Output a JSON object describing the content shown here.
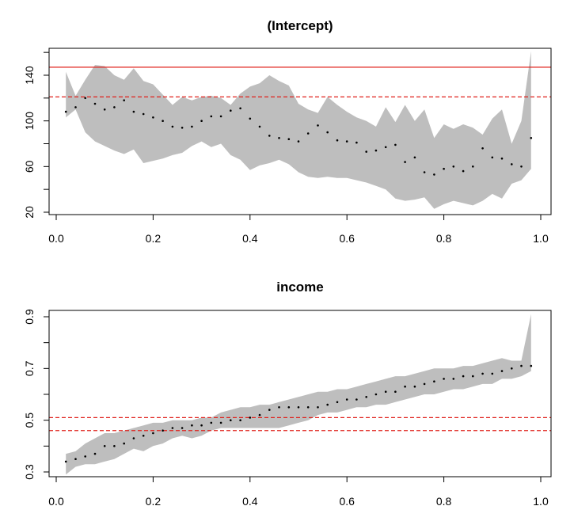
{
  "chart_data": [
    {
      "type": "line",
      "title": "(Intercept)",
      "xlabel": "",
      "ylabel": "",
      "xlim": [
        0,
        1
      ],
      "ylim": [
        20,
        160
      ],
      "x_ticks": [
        0.0,
        0.2,
        0.4,
        0.6,
        0.8,
        1.0
      ],
      "x_tick_labels": [
        "0.0",
        "0.2",
        "0.4",
        "0.6",
        "0.8",
        "1.0"
      ],
      "y_ticks": [
        20,
        40,
        60,
        80,
        100,
        120,
        140,
        160
      ],
      "y_tick_labels": [
        "20",
        "",
        "60",
        "",
        "100",
        "",
        "140",
        ""
      ],
      "grid": false,
      "reference_lines": [
        {
          "y": 147,
          "style": "solid",
          "color": "#e0201b"
        },
        {
          "y": 121,
          "style": "dashed",
          "color": "#e0201b"
        }
      ],
      "band_color": "#bebebe",
      "point_color": "#000000",
      "x": [
        0.02,
        0.04,
        0.06,
        0.08,
        0.1,
        0.12,
        0.14,
        0.16,
        0.18,
        0.2,
        0.22,
        0.24,
        0.26,
        0.28,
        0.3,
        0.32,
        0.34,
        0.36,
        0.38,
        0.4,
        0.42,
        0.44,
        0.46,
        0.48,
        0.5,
        0.52,
        0.54,
        0.56,
        0.58,
        0.6,
        0.62,
        0.64,
        0.66,
        0.68,
        0.7,
        0.72,
        0.74,
        0.76,
        0.78,
        0.8,
        0.82,
        0.84,
        0.86,
        0.88,
        0.9,
        0.92,
        0.94,
        0.96,
        0.98
      ],
      "estimate": [
        108,
        112,
        120,
        115,
        110,
        112,
        118,
        108,
        106,
        103,
        100,
        95,
        94,
        95,
        100,
        104,
        104,
        109,
        111,
        102,
        95,
        87,
        85,
        84,
        82,
        89,
        96,
        90,
        83,
        82,
        81,
        73,
        74,
        77,
        79,
        64,
        68,
        55,
        53,
        58,
        60,
        56,
        60,
        76,
        68,
        67,
        62,
        60,
        85
      ],
      "lower": [
        103,
        110,
        90,
        82,
        78,
        74,
        71,
        75,
        63,
        65,
        67,
        70,
        72,
        78,
        82,
        77,
        80,
        70,
        66,
        57,
        61,
        63,
        66,
        62,
        55,
        51,
        50,
        51,
        50,
        50,
        48,
        46,
        43,
        40,
        32,
        30,
        31,
        33,
        23,
        27,
        30,
        28,
        26,
        30,
        36,
        32,
        45,
        48,
        58
      ],
      "upper": [
        143,
        122,
        136,
        149,
        148,
        140,
        136,
        146,
        135,
        132,
        123,
        114,
        121,
        118,
        121,
        122,
        120,
        114,
        124,
        130,
        133,
        140,
        135,
        131,
        115,
        110,
        107,
        121,
        114,
        108,
        103,
        100,
        95,
        112,
        99,
        114,
        100,
        110,
        85,
        97,
        93,
        97,
        94,
        88,
        102,
        110,
        80,
        100,
        161
      ]
    },
    {
      "type": "line",
      "title": "income",
      "xlabel": "",
      "ylabel": "",
      "xlim": [
        0,
        1
      ],
      "ylim": [
        0.3,
        0.9
      ],
      "x_ticks": [
        0.0,
        0.2,
        0.4,
        0.6,
        0.8,
        1.0
      ],
      "x_tick_labels": [
        "0.0",
        "0.2",
        "0.4",
        "0.6",
        "0.8",
        "1.0"
      ],
      "y_ticks": [
        0.3,
        0.4,
        0.5,
        0.6,
        0.7,
        0.8,
        0.9
      ],
      "y_tick_labels": [
        "0.3",
        "",
        "0.5",
        "",
        "0.7",
        "",
        "0.9"
      ],
      "grid": false,
      "reference_lines": [
        {
          "y": 0.51,
          "style": "dashed",
          "color": "#e0201b"
        },
        {
          "y": 0.46,
          "style": "dashed",
          "color": "#e0201b"
        }
      ],
      "band_color": "#bebebe",
      "point_color": "#000000",
      "x": [
        0.02,
        0.04,
        0.06,
        0.08,
        0.1,
        0.12,
        0.14,
        0.16,
        0.18,
        0.2,
        0.22,
        0.24,
        0.26,
        0.28,
        0.3,
        0.32,
        0.34,
        0.36,
        0.38,
        0.4,
        0.42,
        0.44,
        0.46,
        0.48,
        0.5,
        0.52,
        0.54,
        0.56,
        0.58,
        0.6,
        0.62,
        0.64,
        0.66,
        0.68,
        0.7,
        0.72,
        0.74,
        0.76,
        0.78,
        0.8,
        0.82,
        0.84,
        0.86,
        0.88,
        0.9,
        0.92,
        0.94,
        0.96,
        0.98
      ],
      "estimate": [
        0.34,
        0.35,
        0.36,
        0.37,
        0.4,
        0.4,
        0.41,
        0.43,
        0.44,
        0.45,
        0.46,
        0.47,
        0.47,
        0.48,
        0.48,
        0.49,
        0.49,
        0.5,
        0.5,
        0.51,
        0.52,
        0.54,
        0.55,
        0.55,
        0.55,
        0.55,
        0.55,
        0.56,
        0.57,
        0.58,
        0.58,
        0.59,
        0.6,
        0.61,
        0.61,
        0.63,
        0.63,
        0.64,
        0.65,
        0.66,
        0.66,
        0.67,
        0.67,
        0.68,
        0.68,
        0.69,
        0.7,
        0.71,
        0.71
      ],
      "lower": [
        0.29,
        0.32,
        0.33,
        0.33,
        0.34,
        0.35,
        0.37,
        0.39,
        0.38,
        0.4,
        0.41,
        0.43,
        0.44,
        0.43,
        0.44,
        0.46,
        0.47,
        0.47,
        0.47,
        0.47,
        0.47,
        0.47,
        0.47,
        0.48,
        0.49,
        0.5,
        0.52,
        0.53,
        0.53,
        0.54,
        0.55,
        0.55,
        0.56,
        0.56,
        0.57,
        0.58,
        0.59,
        0.6,
        0.6,
        0.61,
        0.62,
        0.62,
        0.63,
        0.64,
        0.64,
        0.66,
        0.66,
        0.67,
        0.69
      ],
      "upper": [
        0.37,
        0.38,
        0.41,
        0.43,
        0.45,
        0.45,
        0.46,
        0.47,
        0.48,
        0.49,
        0.49,
        0.5,
        0.5,
        0.5,
        0.51,
        0.51,
        0.53,
        0.54,
        0.55,
        0.55,
        0.56,
        0.56,
        0.57,
        0.58,
        0.59,
        0.6,
        0.61,
        0.61,
        0.62,
        0.62,
        0.63,
        0.64,
        0.65,
        0.66,
        0.67,
        0.67,
        0.68,
        0.69,
        0.7,
        0.7,
        0.7,
        0.71,
        0.71,
        0.72,
        0.73,
        0.74,
        0.73,
        0.73,
        0.91
      ]
    }
  ]
}
